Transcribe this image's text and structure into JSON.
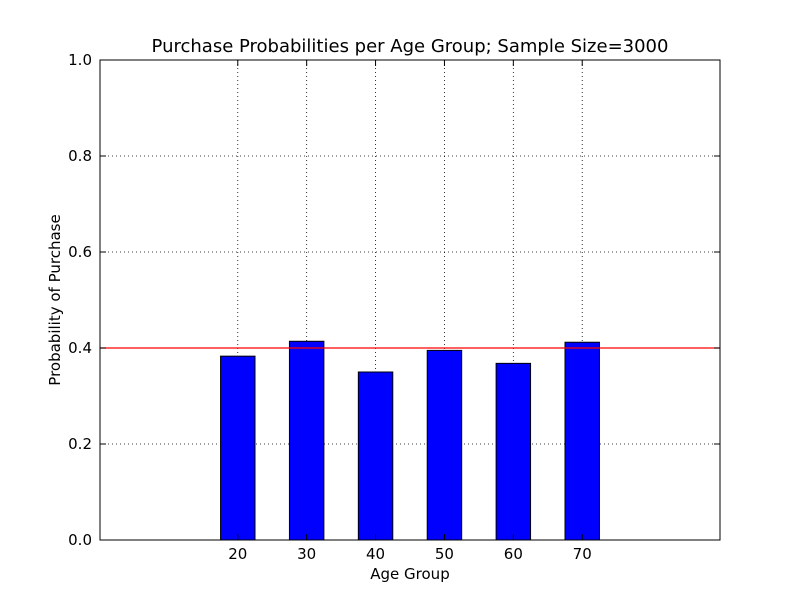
{
  "chart_data": {
    "type": "bar",
    "title": "Purchase Probabilities per Age Group; Sample Size=3000",
    "xlabel": "Age Group",
    "ylabel": "Probability of Purchase",
    "categories": [
      "20",
      "30",
      "40",
      "50",
      "60",
      "70"
    ],
    "x": [
      20,
      30,
      40,
      50,
      60,
      70
    ],
    "values": [
      0.383,
      0.414,
      0.35,
      0.395,
      0.368,
      0.412
    ],
    "xlim": [
      0,
      90
    ],
    "ylim": [
      0.0,
      1.0
    ],
    "yticks": [
      "0.0",
      "0.2",
      "0.4",
      "0.6",
      "0.8",
      "1.0"
    ],
    "bar_width": 5,
    "reference_line": 0.4,
    "grid": true,
    "bar_color": "#0000ff",
    "reference_line_color": "#ff0000"
  }
}
